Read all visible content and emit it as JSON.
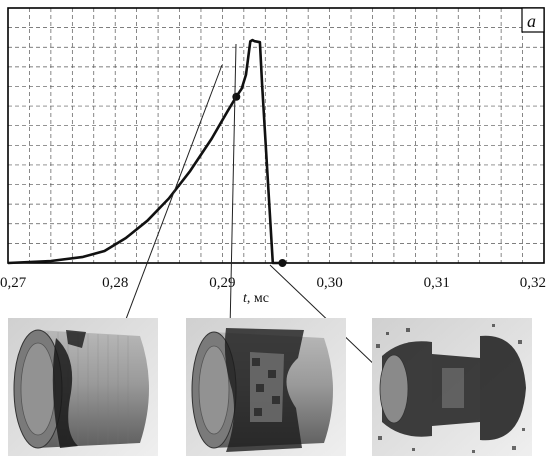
{
  "chart_data": {
    "type": "line",
    "panel_label": "a",
    "xlabel_var": "t",
    "xlabel_unit": ", мс",
    "xlim": [
      0.27,
      0.32
    ],
    "x_ticks": [
      0.27,
      0.28,
      0.29,
      0.3,
      0.31,
      0.32
    ],
    "x_tick_labels": [
      "0,27",
      "0,28",
      "0,29",
      "0,30",
      "0,31",
      "0,32"
    ],
    "ylim": [
      0,
      1
    ],
    "y_ticks_labeled": false,
    "grid": true,
    "series": [
      {
        "x": [
          0.27,
          0.274,
          0.277,
          0.279,
          0.281,
          0.283,
          0.285,
          0.287,
          0.289,
          0.2905,
          0.2913,
          0.2918,
          0.2922,
          0.2926,
          0.2928,
          0.293,
          0.2935,
          0.2937,
          0.2947,
          0.2955
        ],
        "y": [
          0.0,
          0.008,
          0.024,
          0.047,
          0.098,
          0.166,
          0.253,
          0.361,
          0.488,
          0.597,
          0.652,
          0.684,
          0.739,
          0.869,
          0.874,
          0.87,
          0.866,
          0.7,
          0.0,
          0.0
        ]
      }
    ],
    "markers": [
      {
        "x": 0.2913,
        "y": 0.652
      },
      {
        "x": 0.2956,
        "y": 0.0
      }
    ]
  },
  "colors": {
    "line": "#111111",
    "grid": "#555555",
    "frame": "#000000",
    "render_body": "#8a8a8a",
    "render_dark": "#1a1a1a",
    "render_bg": "#d9d9d9"
  }
}
